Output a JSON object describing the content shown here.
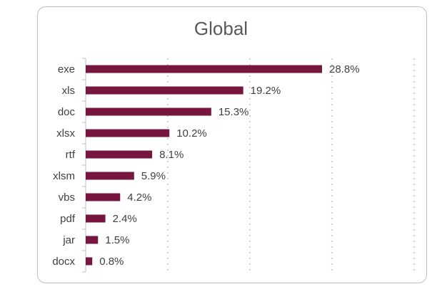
{
  "chart_data": {
    "type": "bar",
    "orientation": "horizontal",
    "title": "Global",
    "xlabel": "",
    "ylabel": "",
    "categories": [
      "exe",
      "xls",
      "doc",
      "xlsx",
      "rtf",
      "xlsm",
      "vbs",
      "pdf",
      "jar",
      "docx"
    ],
    "values": [
      28.8,
      19.2,
      15.3,
      10.2,
      8.1,
      5.9,
      4.2,
      2.4,
      1.5,
      0.8
    ],
    "data_labels": [
      "28.8%",
      "19.2%",
      "15.3%",
      "10.2%",
      "8.1%",
      "5.9%",
      "4.2%",
      "2.4%",
      "1.5%",
      "0.8%"
    ],
    "unit": "%",
    "xlim": [
      0,
      40
    ],
    "grid": "vertical-dotted",
    "legend": "none",
    "bar_color": "#76163f"
  }
}
